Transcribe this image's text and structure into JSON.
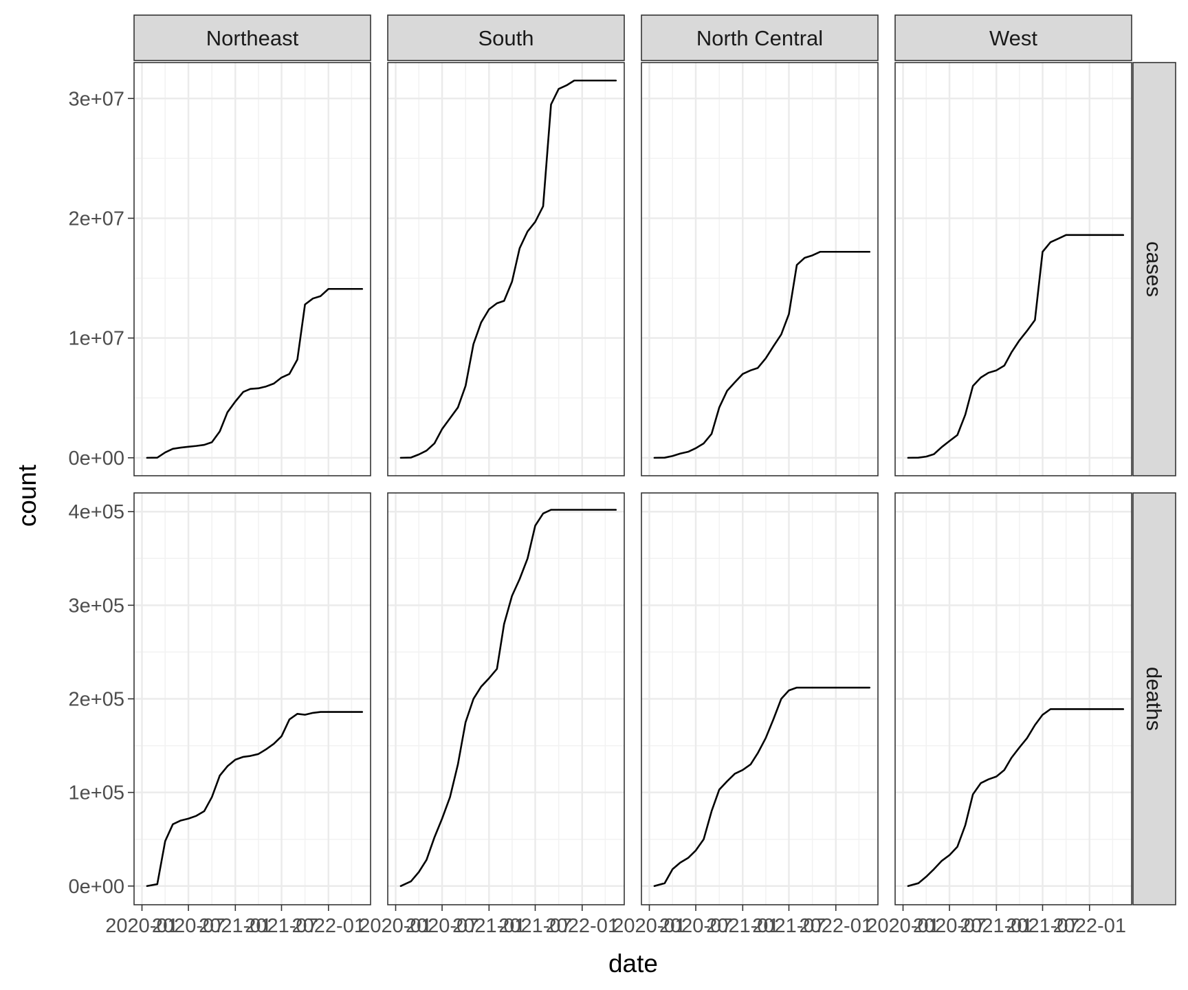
{
  "chart_data": {
    "type": "line",
    "xlabel": "date",
    "ylabel": "count",
    "x_tick_labels": [
      "2020-01",
      "2020-07",
      "2021-01",
      "2021-07",
      "2022-01"
    ],
    "x_range": [
      "2019-12-01",
      "2022-06-15"
    ],
    "columns": [
      "Northeast",
      "South",
      "North Central",
      "West"
    ],
    "rows": [
      {
        "name": "cases",
        "ylim": [
          -1500000,
          33000000
        ],
        "tick_values": [
          0,
          10000000,
          20000000,
          30000000
        ],
        "tick_labels": [
          "0e+00",
          "1e+07",
          "2e+07",
          "3e+07"
        ]
      },
      {
        "name": "deaths",
        "ylim": [
          -20000,
          420000
        ],
        "tick_values": [
          0,
          100000,
          200000,
          300000,
          400000
        ],
        "tick_labels": [
          "0e+00",
          "1e+05",
          "2e+05",
          "3e+05",
          "4e+05"
        ]
      }
    ],
    "x": [
      "2020-01-21",
      "2020-03-01",
      "2020-04-01",
      "2020-05-01",
      "2020-06-01",
      "2020-07-01",
      "2020-08-01",
      "2020-09-01",
      "2020-10-01",
      "2020-11-01",
      "2020-12-01",
      "2021-01-01",
      "2021-02-01",
      "2021-03-01",
      "2021-04-01",
      "2021-05-01",
      "2021-06-01",
      "2021-07-01",
      "2021-08-01",
      "2021-09-01",
      "2021-10-01",
      "2021-11-01",
      "2021-12-01",
      "2022-01-01",
      "2022-02-01",
      "2022-03-01",
      "2022-04-01",
      "2022-05-13"
    ],
    "series": [
      {
        "panel": "Northeast",
        "row": "cases",
        "values": [
          0,
          10000,
          450000,
          750000,
          850000,
          920000,
          990000,
          1080000,
          1300000,
          2200000,
          3800000,
          4700000,
          5500000,
          5750000,
          5800000,
          5950000,
          6200000,
          6700000,
          7000000,
          8200000,
          12800000,
          13300000,
          13500000,
          14100000,
          14100000,
          14100000,
          14100000,
          14100000
        ]
      },
      {
        "panel": "South",
        "row": "cases",
        "values": [
          0,
          20000,
          280000,
          600000,
          1200000,
          2400000,
          3300000,
          4200000,
          6000000,
          9500000,
          11300000,
          12400000,
          12900000,
          13100000,
          14700000,
          17500000,
          18900000,
          19700000,
          21000000,
          29500000,
          30800000,
          31100000,
          31500000,
          31500000,
          31500000,
          31500000,
          31500000,
          31500000
        ]
      },
      {
        "panel": "North Central",
        "row": "cases",
        "values": [
          0,
          10000,
          150000,
          350000,
          500000,
          800000,
          1200000,
          2000000,
          4200000,
          5600000,
          6300000,
          7000000,
          7300000,
          7500000,
          8300000,
          9300000,
          10300000,
          12000000,
          16100000,
          16700000,
          16900000,
          17200000,
          17200000,
          17200000,
          17200000,
          17200000,
          17200000,
          17200000
        ]
      },
      {
        "panel": "West",
        "row": "cases",
        "values": [
          0,
          10000,
          100000,
          300000,
          900000,
          1400000,
          1900000,
          3600000,
          6000000,
          6700000,
          7100000,
          7300000,
          7700000,
          8800000,
          9800000,
          10600000,
          11500000,
          17200000,
          18000000,
          18300000,
          18600000,
          18600000,
          18600000,
          18600000,
          18600000,
          18600000,
          18600000,
          18600000
        ]
      },
      {
        "panel": "Northeast",
        "row": "deaths",
        "values": [
          0,
          2000,
          48000,
          66000,
          70000,
          72000,
          75000,
          80000,
          95000,
          118000,
          128000,
          135000,
          138000,
          139000,
          141000,
          146000,
          152000,
          160000,
          178000,
          184000,
          183000,
          185000,
          186000,
          186000,
          186000,
          186000,
          186000,
          186000
        ]
      },
      {
        "panel": "South",
        "row": "deaths",
        "values": [
          0,
          5000,
          15000,
          28000,
          52000,
          72000,
          95000,
          130000,
          175000,
          200000,
          213000,
          222000,
          232000,
          280000,
          310000,
          328000,
          350000,
          385000,
          398000,
          402000,
          402000,
          402000,
          402000,
          402000,
          402000,
          402000,
          402000,
          402000
        ]
      },
      {
        "panel": "North Central",
        "row": "deaths",
        "values": [
          0,
          3000,
          18000,
          25000,
          30000,
          38000,
          50000,
          80000,
          103000,
          112000,
          120000,
          124000,
          130000,
          142000,
          158000,
          178000,
          200000,
          209000,
          212000,
          212000,
          212000,
          212000,
          212000,
          212000,
          212000,
          212000,
          212000,
          212000
        ]
      },
      {
        "panel": "West",
        "row": "deaths",
        "values": [
          0,
          3000,
          10000,
          18000,
          27000,
          33000,
          42000,
          65000,
          98000,
          110000,
          114000,
          117000,
          124000,
          137000,
          148000,
          158000,
          172000,
          183000,
          189000,
          189000,
          189000,
          189000,
          189000,
          189000,
          189000,
          189000,
          189000,
          189000
        ]
      }
    ],
    "grid": true,
    "legend": "none"
  }
}
